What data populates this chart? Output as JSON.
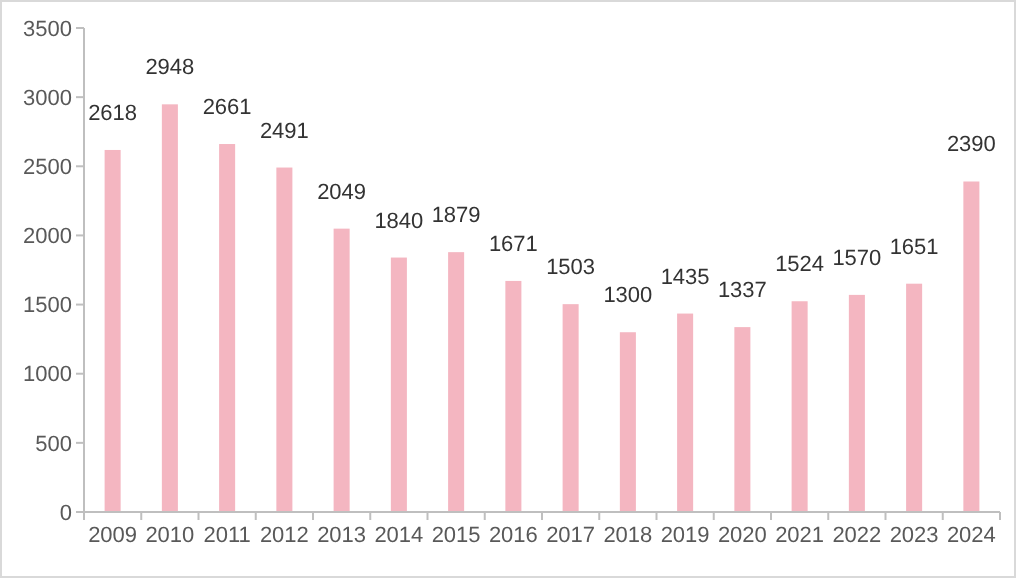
{
  "chart_data": {
    "type": "bar",
    "categories": [
      "2009",
      "2010",
      "2011",
      "2012",
      "2013",
      "2014",
      "2015",
      "2016",
      "2017",
      "2018",
      "2019",
      "2020",
      "2021",
      "2022",
      "2023",
      "2024"
    ],
    "values": [
      2618,
      2948,
      2661,
      2491,
      2049,
      1840,
      1879,
      1671,
      1503,
      1300,
      1435,
      1337,
      1524,
      1570,
      1651,
      2390
    ],
    "color": "#f4b6c1",
    "ylim": [
      0,
      3500
    ],
    "yticks": [
      0,
      500,
      1000,
      1500,
      2000,
      2500,
      3000,
      3500
    ],
    "grid": false,
    "data_labels": true
  }
}
